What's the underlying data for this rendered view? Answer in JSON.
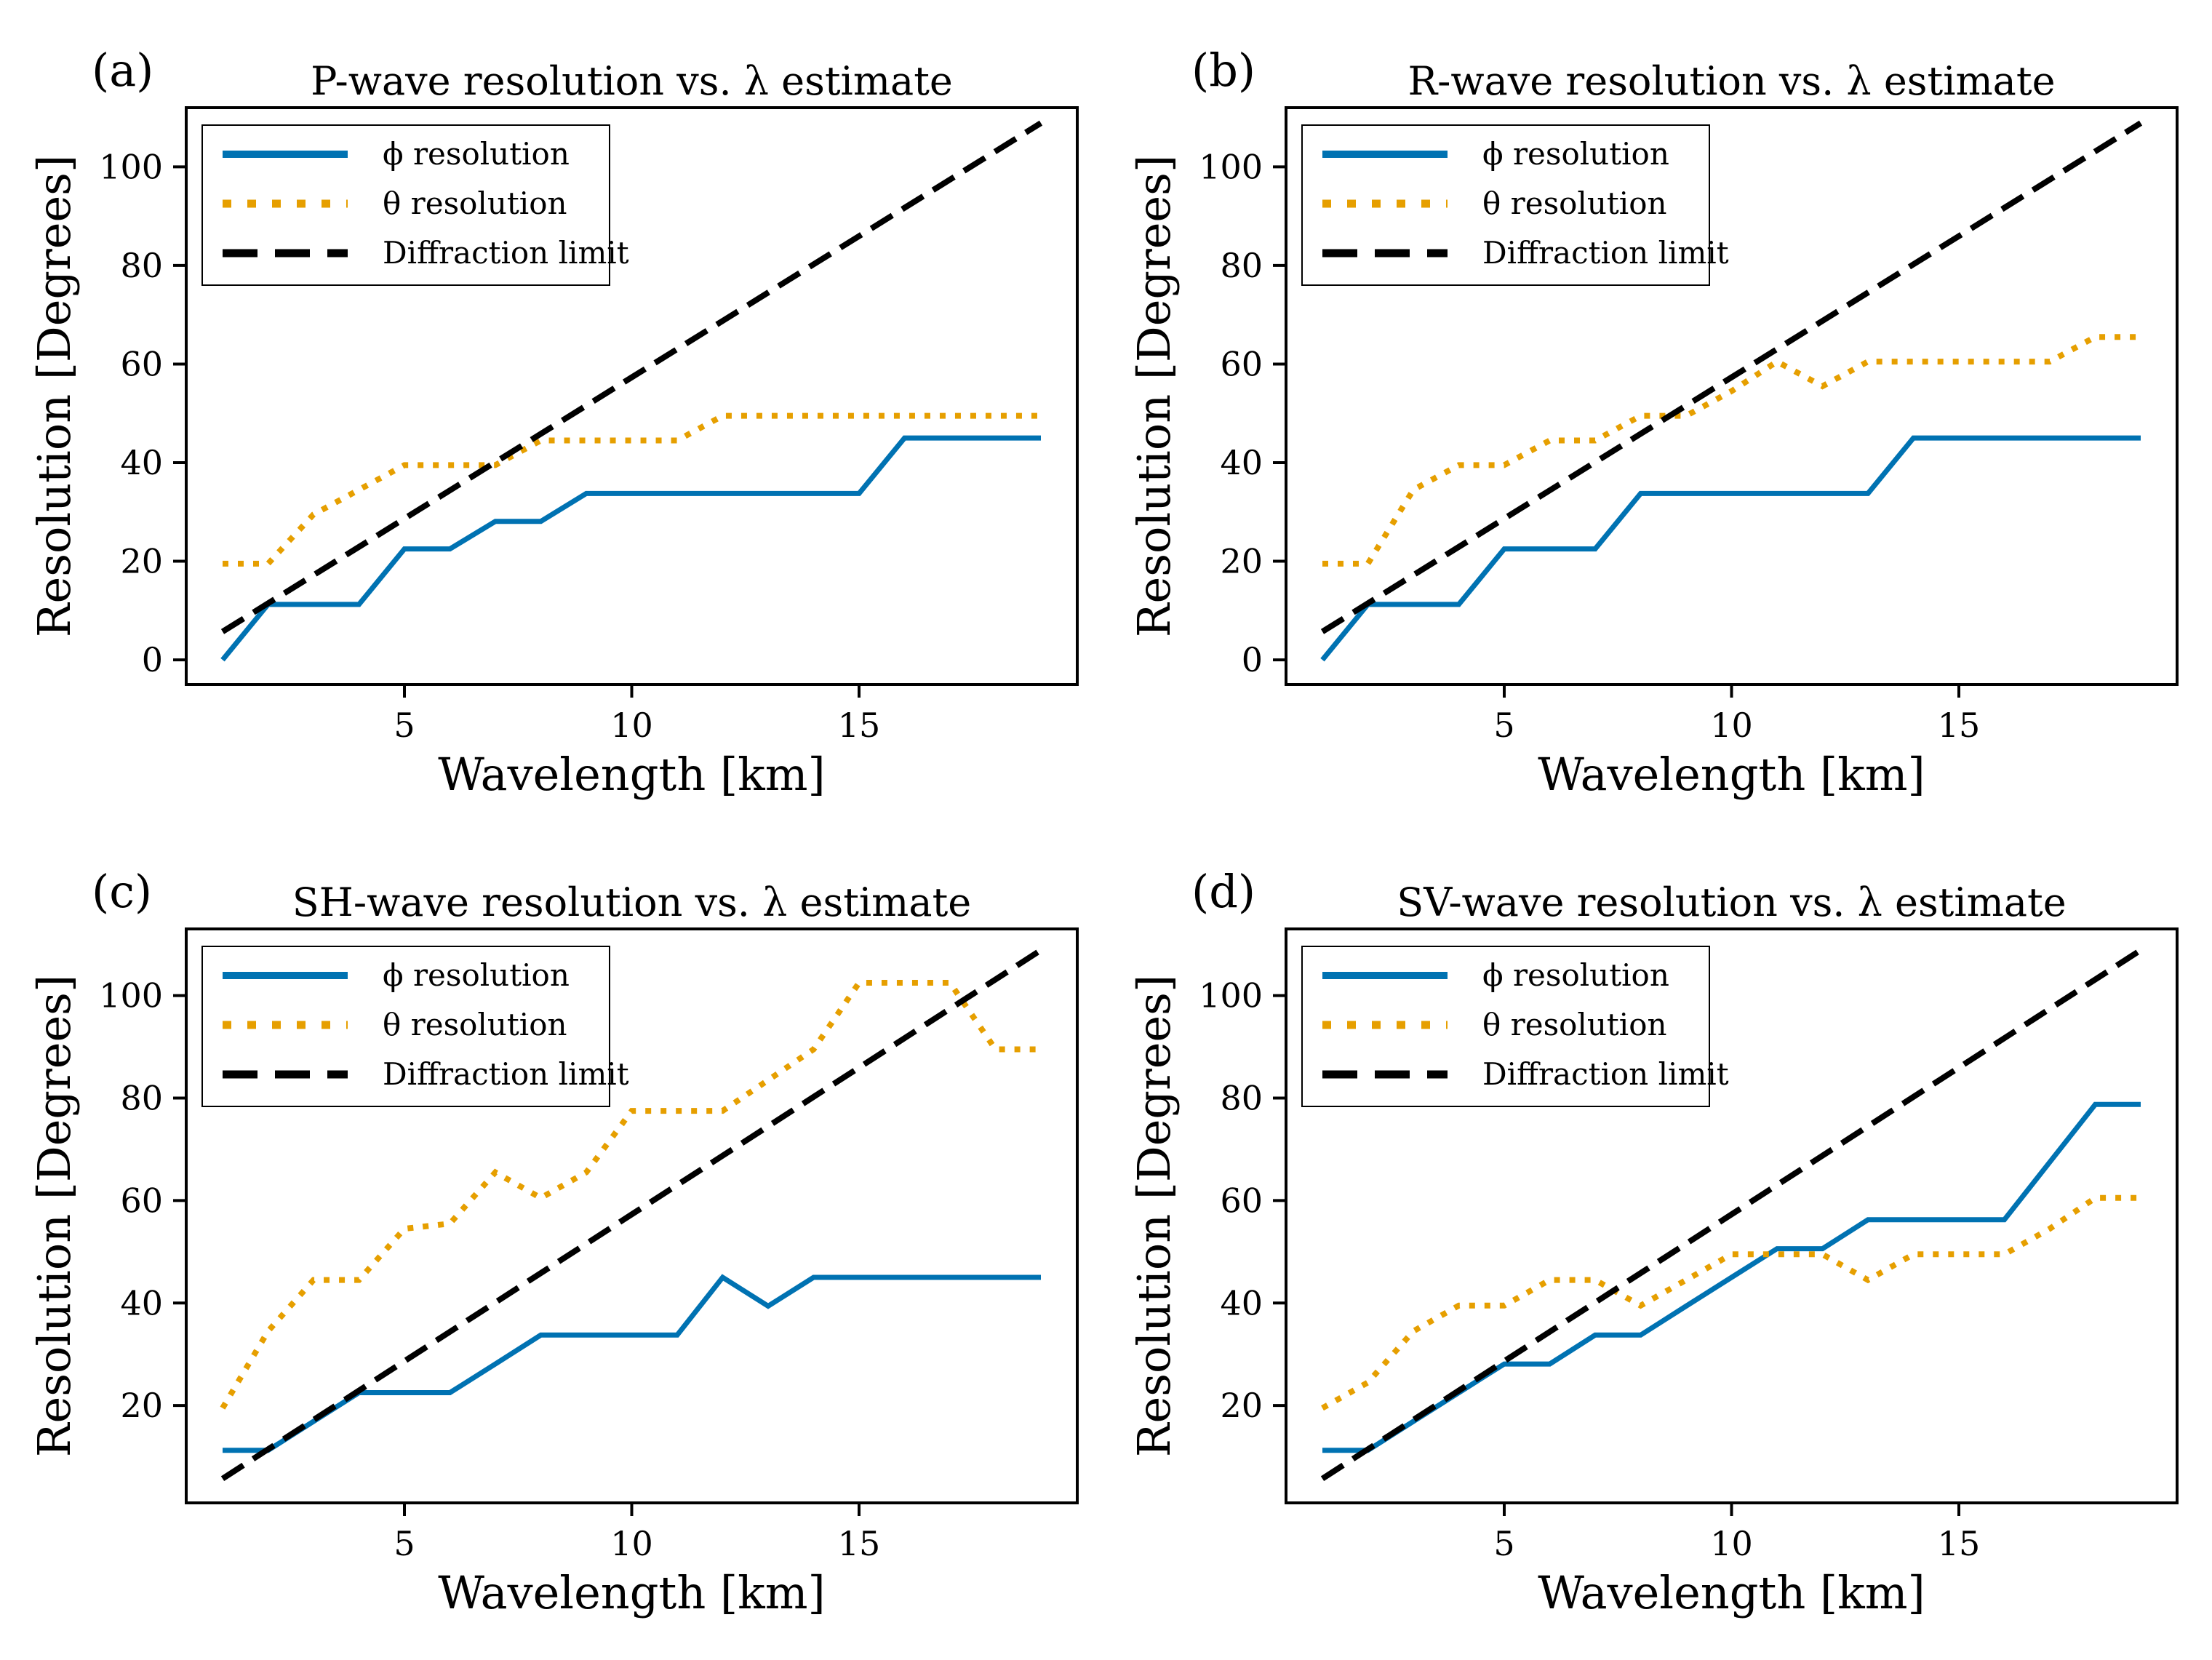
{
  "figure": {
    "colors": {
      "phi": "#0072B2",
      "theta": "#E69F00",
      "limit": "#000000"
    }
  },
  "chart_data": [
    {
      "type": "line",
      "panel_label": "(a)",
      "title": "P-wave resolution vs. λ estimate",
      "xlabel": "Wavelength [km]",
      "ylabel": "Resolution [Degrees]",
      "xlim": [
        0.2,
        19.8
      ],
      "ylim": [
        -5,
        112
      ],
      "xticks": [
        5,
        10,
        15
      ],
      "yticks": [
        0,
        20,
        40,
        60,
        80,
        100
      ],
      "legend_position": "upper-left",
      "x": [
        1,
        2,
        3,
        4,
        5,
        6,
        7,
        8,
        9,
        10,
        11,
        12,
        13,
        14,
        15,
        16,
        17,
        18,
        19
      ],
      "series": [
        {
          "name": "ϕ resolution",
          "style": "solid",
          "values": [
            0,
            11.25,
            11.25,
            11.25,
            22.5,
            22.5,
            28.1,
            28.1,
            33.75,
            33.75,
            33.75,
            33.75,
            33.75,
            33.75,
            33.75,
            45,
            45,
            45,
            45
          ]
        },
        {
          "name": "θ resolution",
          "style": "dotted",
          "values": [
            19.5,
            19.5,
            29.5,
            34.5,
            39.5,
            39.5,
            39.5,
            44.5,
            44.5,
            44.5,
            44.5,
            49.5,
            49.5,
            49.5,
            49.5,
            49.5,
            49.5,
            49.5,
            49.5
          ]
        },
        {
          "name": "Diffraction limit",
          "style": "dashed",
          "values": [
            5.73,
            11.46,
            17.19,
            22.92,
            28.65,
            34.38,
            40.11,
            45.84,
            51.57,
            57.3,
            63.03,
            68.76,
            74.49,
            80.22,
            85.95,
            91.68,
            97.41,
            103.14,
            108.87
          ]
        }
      ]
    },
    {
      "type": "line",
      "panel_label": "(b)",
      "title": "R-wave resolution vs. λ estimate",
      "xlabel": "Wavelength [km]",
      "ylabel": "Resolution [Degrees]",
      "xlim": [
        0.2,
        19.8
      ],
      "ylim": [
        -5,
        112
      ],
      "xticks": [
        5,
        10,
        15
      ],
      "yticks": [
        0,
        20,
        40,
        60,
        80,
        100
      ],
      "legend_position": "upper-left",
      "x": [
        1,
        2,
        3,
        4,
        5,
        6,
        7,
        8,
        9,
        10,
        11,
        12,
        13,
        14,
        15,
        16,
        17,
        18,
        19
      ],
      "series": [
        {
          "name": "ϕ resolution",
          "style": "solid",
          "values": [
            0,
            11.25,
            11.25,
            11.25,
            22.5,
            22.5,
            22.5,
            33.75,
            33.75,
            33.75,
            33.75,
            33.75,
            33.75,
            45,
            45,
            45,
            45,
            45,
            45
          ]
        },
        {
          "name": "θ resolution",
          "style": "dotted",
          "values": [
            19.5,
            19.5,
            34.5,
            39.5,
            39.5,
            44.5,
            44.5,
            49.5,
            49.5,
            54.5,
            60.5,
            55.5,
            60.5,
            60.5,
            60.5,
            60.5,
            60.5,
            65.5,
            65.5
          ]
        },
        {
          "name": "Diffraction limit",
          "style": "dashed",
          "values": [
            5.73,
            11.46,
            17.19,
            22.92,
            28.65,
            34.38,
            40.11,
            45.84,
            51.57,
            57.3,
            63.03,
            68.76,
            74.49,
            80.22,
            85.95,
            91.68,
            97.41,
            103.14,
            108.87
          ]
        }
      ]
    },
    {
      "type": "line",
      "panel_label": "(c)",
      "title": "SH-wave resolution vs. λ estimate",
      "xlabel": "Wavelength [km]",
      "ylabel": "Resolution [Degrees]",
      "xlim": [
        0.2,
        19.8
      ],
      "ylim": [
        1,
        113
      ],
      "xticks": [
        5,
        10,
        15
      ],
      "yticks": [
        20,
        40,
        60,
        80,
        100
      ],
      "legend_position": "upper-left",
      "x": [
        1,
        2,
        3,
        4,
        5,
        6,
        7,
        8,
        9,
        10,
        11,
        12,
        13,
        14,
        15,
        16,
        17,
        18,
        19
      ],
      "series": [
        {
          "name": "ϕ resolution",
          "style": "solid",
          "values": [
            11.25,
            11.25,
            16.9,
            22.5,
            22.5,
            22.5,
            28.1,
            33.75,
            33.75,
            33.75,
            33.75,
            45,
            39.4,
            45,
            45,
            45,
            45,
            45,
            45
          ]
        },
        {
          "name": "θ resolution",
          "style": "dotted",
          "values": [
            19.5,
            34.5,
            44.5,
            44.5,
            54.5,
            55.5,
            65.5,
            60.5,
            65.5,
            77.5,
            77.5,
            77.5,
            83.5,
            89.5,
            102.5,
            102.5,
            102.5,
            89.5,
            89.5
          ]
        },
        {
          "name": "Diffraction limit",
          "style": "dashed",
          "values": [
            5.73,
            11.46,
            17.19,
            22.92,
            28.65,
            34.38,
            40.11,
            45.84,
            51.57,
            57.3,
            63.03,
            68.76,
            74.49,
            80.22,
            85.95,
            91.68,
            97.41,
            103.14,
            108.87
          ]
        }
      ]
    },
    {
      "type": "line",
      "panel_label": "(d)",
      "title": "SV-wave resolution vs. λ estimate",
      "xlabel": "Wavelength [km]",
      "ylabel": "Resolution [Degrees]",
      "xlim": [
        0.2,
        19.8
      ],
      "ylim": [
        1,
        113
      ],
      "xticks": [
        5,
        10,
        15
      ],
      "yticks": [
        20,
        40,
        60,
        80,
        100
      ],
      "legend_position": "upper-left",
      "x": [
        1,
        2,
        3,
        4,
        5,
        6,
        7,
        8,
        9,
        10,
        11,
        12,
        13,
        14,
        15,
        16,
        17,
        18,
        19
      ],
      "series": [
        {
          "name": "ϕ resolution",
          "style": "solid",
          "values": [
            11.25,
            11.25,
            16.9,
            22.5,
            28.1,
            28.1,
            33.75,
            33.75,
            39.4,
            45,
            50.6,
            50.6,
            56.25,
            56.25,
            56.25,
            56.25,
            67.5,
            78.75,
            78.75
          ]
        },
        {
          "name": "θ resolution",
          "style": "dotted",
          "values": [
            19.5,
            24.5,
            34.5,
            39.5,
            39.5,
            44.5,
            44.5,
            39.5,
            44.5,
            49.5,
            49.5,
            49.5,
            44.5,
            49.5,
            49.5,
            49.5,
            54.5,
            60.5,
            60.5
          ]
        },
        {
          "name": "Diffraction limit",
          "style": "dashed",
          "values": [
            5.73,
            11.46,
            17.19,
            22.92,
            28.65,
            34.38,
            40.11,
            45.84,
            51.57,
            57.3,
            63.03,
            68.76,
            74.49,
            80.22,
            85.95,
            91.68,
            97.41,
            103.14,
            108.87
          ]
        }
      ]
    }
  ]
}
